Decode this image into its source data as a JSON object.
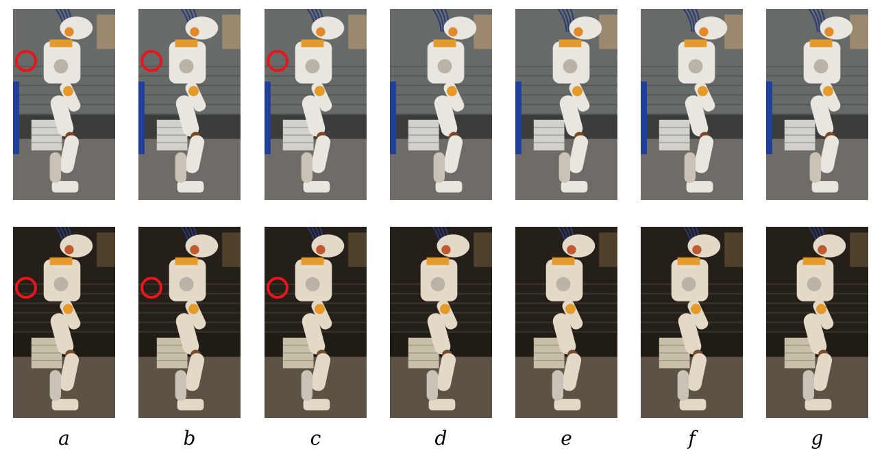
{
  "labels": [
    "a",
    "b",
    "c",
    "d",
    "e",
    "f",
    "g"
  ],
  "rows": [
    {
      "scene": "lab-bright",
      "sky": "#8a8f8c",
      "floor": "#6f6b66",
      "ambient": "#3a3d3c",
      "robot": "#e9e6df"
    },
    {
      "scene": "lab-warm",
      "sky": "#2f2a22",
      "floor": "#5c5346",
      "ambient": "#1f1b15",
      "robot": "#e3d9c6"
    }
  ],
  "highlight": {
    "color": "#e8161b",
    "frames": [
      "a",
      "b",
      "c"
    ]
  }
}
